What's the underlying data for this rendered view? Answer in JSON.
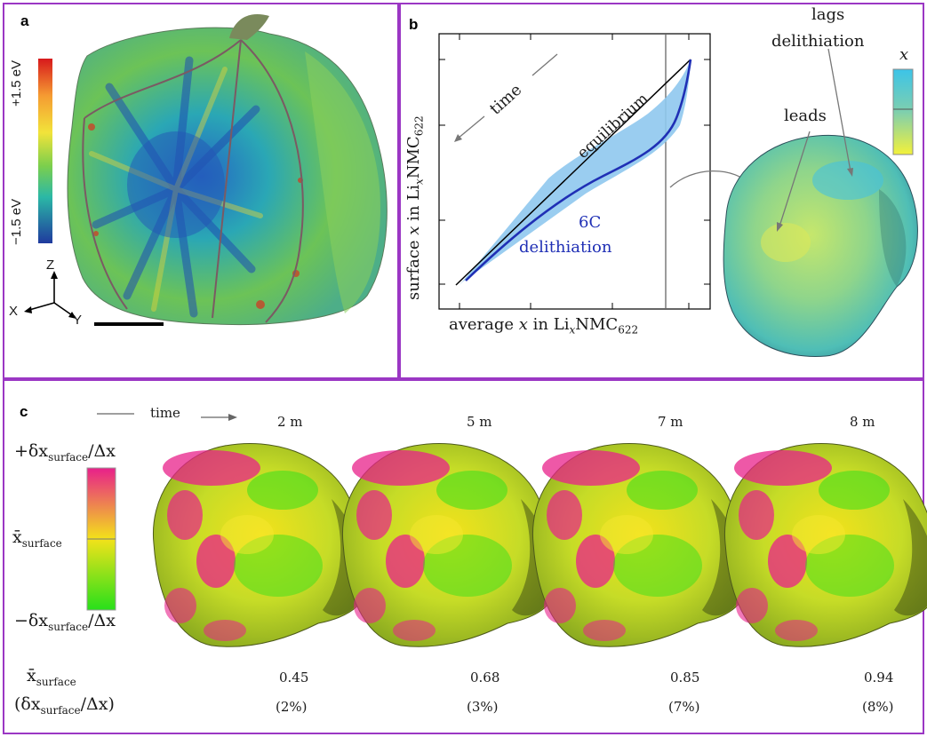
{
  "panel_a": {
    "label": "a",
    "colorbar_top": "+1.5 eV",
    "colorbar_bottom": "−1.5 eV",
    "axis_z": "Z",
    "axis_x": "X",
    "axis_y": "Y",
    "colors": [
      "#d7191c",
      "#f59b32",
      "#f2e33a",
      "#7ccf4c",
      "#2bb8a6",
      "#2e6fcf",
      "#1f3a9e"
    ]
  },
  "panel_b": {
    "label": "b",
    "time_label": "time",
    "equilibrium_label": "equilibrium",
    "curve_label_1": "6C",
    "curve_label_2": "delithiation",
    "ylabel_main": "surface ",
    "ylabel_var": "x",
    "ylabel_rest": " in Li",
    "ylabel_sub_x": "x",
    "ylabel_nmc": "NMC",
    "ylabel_sub_622": "622",
    "xlabel_main": "average ",
    "xlabel_var": "x",
    "xlabel_rest": " in Li",
    "xlabel_sub_x": "x",
    "xlabel_nmc": "NMC",
    "xlabel_sub_622": "622",
    "lags_line1": "lags",
    "lags_line2": "delithiation",
    "leads_label": "leads",
    "colorbar_var": "x",
    "line_color": "#1f2fb5",
    "band_color": "#8fc8ee"
  },
  "panel_c": {
    "label": "c",
    "time_label": "time",
    "top_legend_plus": "+δx",
    "top_legend_sub": "surface",
    "top_legend_rest": "/Δx",
    "mid_legend": "x̄",
    "mid_legend_sub": "surface",
    "bot_legend_minus": "−δx",
    "bot_legend_sub": "surface",
    "bot_legend_rest": "/Δx",
    "row1_label": "x̄",
    "row1_sub": "surface",
    "row2_label_a": "(δx",
    "row2_sub": "surface",
    "row2_label_b": "/Δx)",
    "frames": [
      {
        "time": "2 m",
        "mean": "0.45",
        "pct": "(2%)"
      },
      {
        "time": "5 m",
        "mean": "0.68",
        "pct": "(3%)"
      },
      {
        "time": "7 m",
        "mean": "0.85",
        "pct": "(7%)"
      },
      {
        "time": "8 m",
        "mean": "0.94",
        "pct": "(8%)"
      }
    ],
    "colors": {
      "high": "#e8208a",
      "mid": "#f3e21a",
      "low": "#27e01a"
    }
  },
  "panel_border_color": "#9b37c4"
}
